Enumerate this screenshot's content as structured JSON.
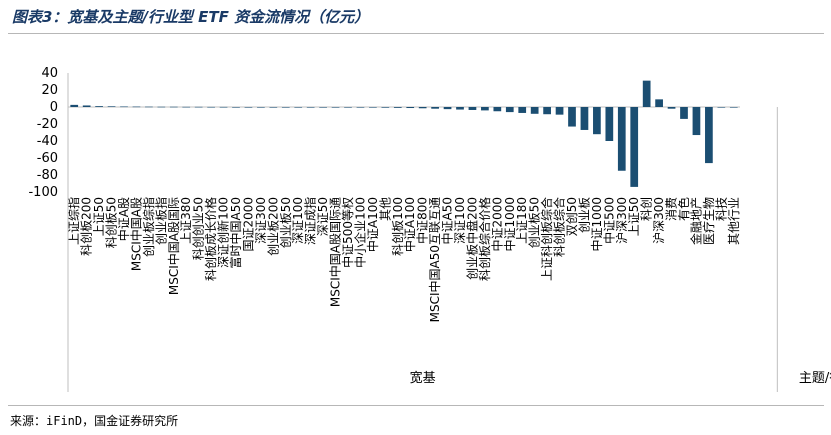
{
  "title": "图表3：宽基及主题/行业型 ETF 资金流情况（亿元）",
  "source": "来源：iFinD，国金证券研究所",
  "colors": {
    "bar": "#1b4e72",
    "title": "#1a3a66",
    "grid": "#d9d9d9",
    "axis": "#bfbfbf"
  },
  "chart_data": {
    "type": "bar",
    "title": "",
    "xlabel": "",
    "ylabel": "",
    "ylim": [
      -100,
      40
    ],
    "yticks": [
      40,
      20,
      0,
      -20,
      -40,
      -60,
      -80,
      -100
    ],
    "grid": false,
    "legend": "none",
    "groups": [
      {
        "label": "宽基",
        "start": 0,
        "end": 57
      },
      {
        "label": "主题/行业",
        "start": 57,
        "end": 65
      }
    ],
    "categories": [
      "上证综指",
      "科创板200",
      "上证50",
      "科创板50",
      "中证A股",
      "MSCI中国A股",
      "创业板综指",
      "创业板指",
      "MSCI中国A股国际",
      "上证380",
      "科创创业50",
      "科创板成长价格",
      "深证创新100",
      "富时中国A50",
      "国证2000",
      "深证300",
      "创业板200",
      "创业板50",
      "深证100",
      "深证成指",
      "深证50",
      "MSCI中国A股国际通",
      "中证500等权",
      "中小企业100",
      "中证A100",
      "其他",
      "科创板100",
      "中证A100",
      "中证800",
      "MSCI中国A50互联互通",
      "中证A50",
      "深证100",
      "创业板中盘200",
      "科创板综合价格",
      "中证2000",
      "中证1000",
      "上证180",
      "创业板50",
      "上证科创板综合",
      "科创板综合",
      "双创50",
      "创业板",
      "中证1000",
      "中证500",
      "沪深300",
      "上证50",
      "科创",
      "沪深300",
      "消费",
      "有色",
      "金融地产",
      "医疗生物",
      "科技",
      "其他行业"
    ],
    "values": [
      2.5,
      1.8,
      1.0,
      0.8,
      0.6,
      0.5,
      0.4,
      0.3,
      0.3,
      0.2,
      0.2,
      0.1,
      0.1,
      0.0,
      -0.1,
      -0.1,
      -0.2,
      -0.2,
      -0.3,
      -0.3,
      -0.3,
      -0.4,
      -0.4,
      -0.5,
      -0.6,
      -0.8,
      -1.0,
      -1.2,
      -1.5,
      -2.0,
      -2.5,
      -3.0,
      -3.5,
      -4.0,
      -5.0,
      -6.0,
      -7.0,
      -8.0,
      -8.5,
      -9.0,
      -23.0,
      -27.0,
      -32.0,
      -40.0,
      -75.0,
      -94.0,
      31.0,
      9.0,
      -2.0,
      -14.0,
      -33.0,
      -66.0,
      0.0,
      0.0
    ]
  }
}
